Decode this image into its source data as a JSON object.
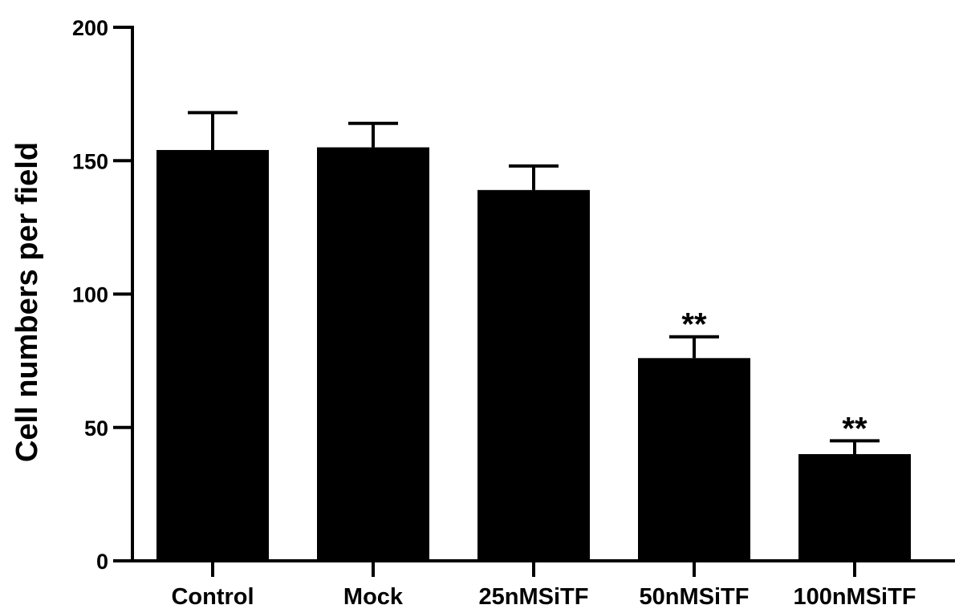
{
  "chart_data": {
    "type": "bar",
    "title": "",
    "xlabel": "",
    "ylabel": "Cell numbers per field",
    "ylim": [
      0,
      200
    ],
    "yticks": [
      0,
      50,
      100,
      150,
      200
    ],
    "grid": false,
    "legend": "none",
    "categories": [
      "Control",
      "Mock",
      "25nMSiTF",
      "50nMSiTF",
      "100nMSiTF"
    ],
    "values": [
      154,
      155,
      139,
      76,
      40
    ],
    "error_upper": [
      14,
      9,
      9,
      8,
      5
    ],
    "annotations": [
      "",
      "",
      "",
      "**",
      "**"
    ],
    "bar_color": "#000000"
  }
}
